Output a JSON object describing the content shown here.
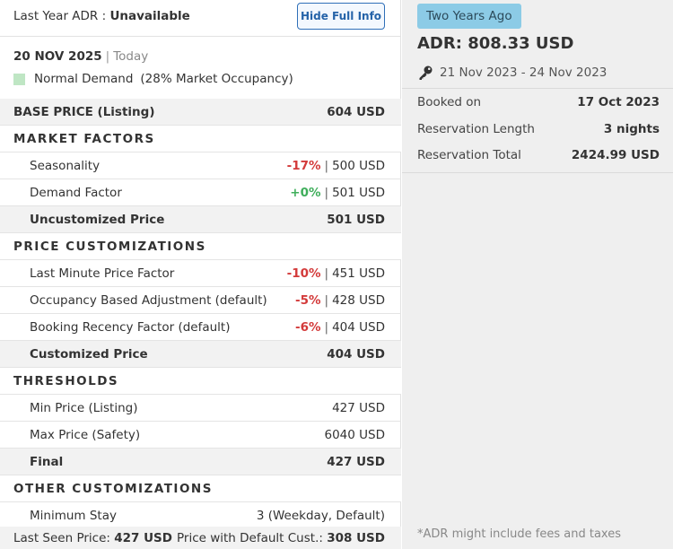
{
  "header": {
    "last_year_adr_label": "Last Year ADR :",
    "last_year_adr_value": "Unavailable",
    "hide_button": "Hide Full Info"
  },
  "date": {
    "value": "20 NOV 2025",
    "separator": "|",
    "today": "Today"
  },
  "demand": {
    "level": "Normal Demand",
    "occupancy": "(28% Market Occupancy)",
    "swatch_color": "#bfe6c4"
  },
  "base_price": {
    "label": "BASE PRICE (Listing)",
    "value": "604 USD"
  },
  "market_factors": {
    "title": "MARKET FACTORS",
    "rows": [
      {
        "label": "Seasonality",
        "pct": "-17%",
        "price": "500 USD"
      },
      {
        "label": "Demand Factor",
        "pct": "+0%",
        "price": "501 USD"
      }
    ],
    "subtotal": {
      "label": "Uncustomized Price",
      "value": "501 USD"
    }
  },
  "price_customizations": {
    "title": "PRICE CUSTOMIZATIONS",
    "rows": [
      {
        "label": "Last Minute Price Factor",
        "pct": "-10%",
        "price": "451 USD"
      },
      {
        "label": "Occupancy Based Adjustment (default)",
        "pct": "-5%",
        "price": "428 USD"
      },
      {
        "label": "Booking Recency Factor (default)",
        "pct": "-6%",
        "price": "404 USD"
      }
    ],
    "subtotal": {
      "label": "Customized Price",
      "value": "404 USD"
    }
  },
  "thresholds": {
    "title": "THRESHOLDS",
    "rows": [
      {
        "label": "Min Price (Listing)",
        "value": "427 USD"
      },
      {
        "label": "Max Price (Safety)",
        "value": "6040 USD"
      }
    ],
    "final": {
      "label": "Final",
      "value": "427 USD"
    }
  },
  "other_customizations": {
    "title": "OTHER CUSTOMIZATIONS",
    "rows": [
      {
        "label": "Minimum Stay",
        "value": "3 (Weekday, Default)"
      }
    ]
  },
  "footer": {
    "last_seen_label": "Last Seen Price:",
    "last_seen_value": "427 USD",
    "default_cust_label": "Price with Default Cust.:",
    "default_cust_value": "308 USD"
  },
  "right_panel": {
    "badge": "Two Years Ago",
    "adr": "ADR: 808.33 USD",
    "date_range": "21 Nov 2023 - 24 Nov 2023",
    "details": [
      {
        "label": "Booked on",
        "value": "17 Oct 2023"
      },
      {
        "label": "Reservation Length",
        "value": "3 nights"
      },
      {
        "label": "Reservation Total",
        "value": "2424.99 USD"
      }
    ],
    "note": "*ADR might include fees and taxes"
  },
  "colors": {
    "negative": "#d33a3a",
    "positive": "#3fae5b",
    "accent": "#2563a8",
    "badge_bg": "#8ccbe6"
  }
}
